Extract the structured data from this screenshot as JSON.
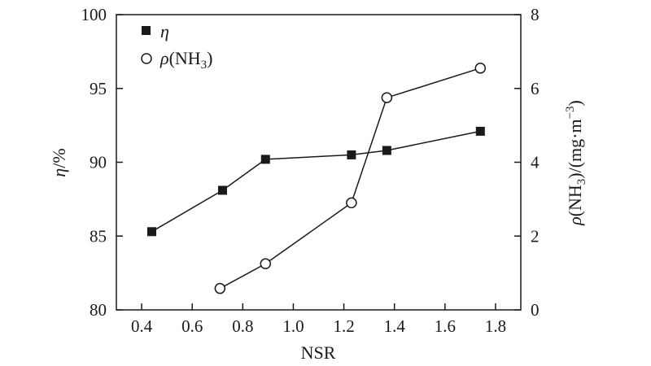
{
  "chart_data": {
    "type": "line",
    "x": [],
    "xlabel": "NSR",
    "xlim": [
      0.3,
      1.9
    ],
    "xticks": [
      "0.4",
      "0.6",
      "0.8",
      "1.0",
      "1.2",
      "1.4",
      "1.6",
      "1.8"
    ],
    "ylabel": {
      "symbol": "η",
      "rest": "/%"
    },
    "ylim": [
      80,
      100
    ],
    "yticks": [
      "80",
      "85",
      "90",
      "95",
      "100"
    ],
    "y2label": {
      "symbol": "ρ",
      "pre": "(NH",
      "sub": "3",
      "mid": ")/(mg·m",
      "sup": "−3",
      "post": ")"
    },
    "y2lim": [
      0,
      8
    ],
    "y2ticks": [
      "0",
      "2",
      "4",
      "6",
      "8"
    ],
    "legend_position": "top-left",
    "series": [
      {
        "name": "η",
        "label": {
          "symbol": "η",
          "pre": "",
          "sub": "",
          "post": ""
        },
        "marker": "filled-square",
        "axis": "left",
        "color": "#1a1a1a",
        "points": [
          [
            0.44,
            85.3
          ],
          [
            0.72,
            88.1
          ],
          [
            0.89,
            90.2
          ],
          [
            1.23,
            90.5
          ],
          [
            1.37,
            90.8
          ],
          [
            1.74,
            92.1
          ]
        ]
      },
      {
        "name": "ρ(NH3)",
        "label": {
          "symbol": "ρ",
          "pre": "(NH",
          "sub": "3",
          "post": ")"
        },
        "marker": "open-circle",
        "axis": "right",
        "color": "#1a1a1a",
        "points": [
          [
            0.71,
            0.58
          ],
          [
            0.89,
            1.25
          ],
          [
            1.23,
            2.9
          ],
          [
            1.37,
            5.75
          ],
          [
            1.74,
            6.55
          ]
        ]
      }
    ]
  }
}
